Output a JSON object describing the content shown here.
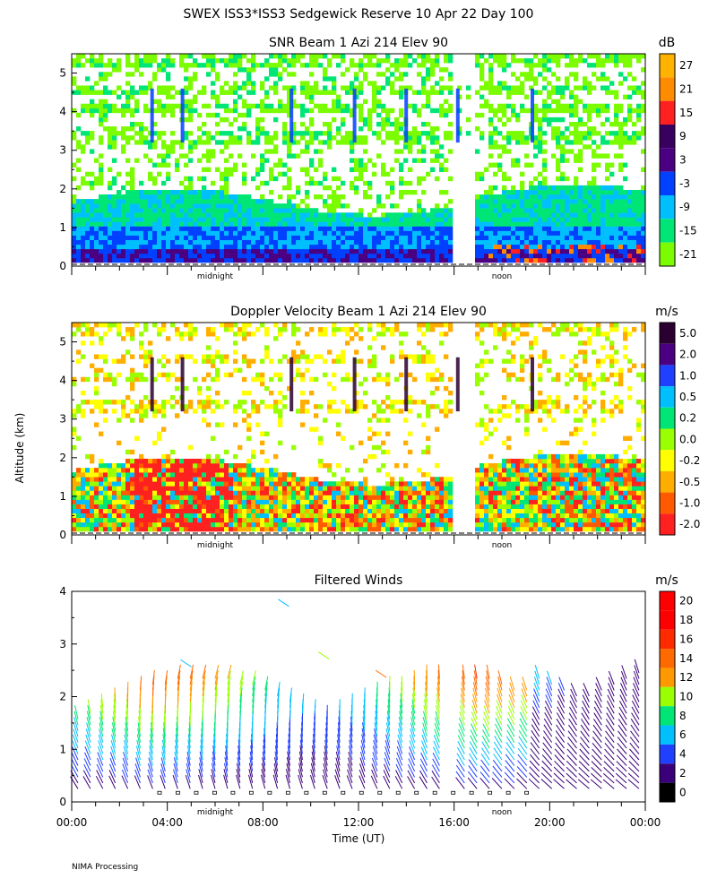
{
  "page_title": "SWEX ISS3*ISS3 Sedgewick Reserve  10 Apr 22 Day 100",
  "footer": "NIMA Processing",
  "colors": {
    "snr": [
      "#7cfc00",
      "#00e676",
      "#00bfff",
      "#0040ff",
      "#4b0082",
      "#3a0060",
      "#ff2020",
      "#ff8c00",
      "#ffb300"
    ],
    "velocity": [
      "#ff2020",
      "#ff5a00",
      "#ffae00",
      "#ffff00",
      "#9aff00",
      "#00e676",
      "#00bfff",
      "#2040ff",
      "#4b0082",
      "#2a0030"
    ],
    "winds": [
      "#000000",
      "#3a007a",
      "#2040ff",
      "#00bfff",
      "#00e676",
      "#9aff00",
      "#ff9900",
      "#ff6a00",
      "#ff2a00",
      "#ff0000",
      "#ff0000"
    ]
  },
  "chart_data": [
    {
      "type": "heatmap",
      "title": "SNR Beam 1 Azi 214 Elev 90",
      "ylabel": "",
      "ylim": [
        0,
        5.5
      ],
      "yticks": [
        "0",
        "1",
        "2",
        "3",
        "4",
        "5"
      ],
      "x_markers": [
        "midnight",
        "noon"
      ],
      "colorbar": {
        "unit": "dB",
        "labels": [
          "27",
          "21",
          "15",
          "9",
          "3",
          "-3",
          "-9",
          "-15",
          "-21"
        ]
      }
    },
    {
      "type": "heatmap",
      "title": "Doppler Velocity Beam 1 Azi 214 Elev 90",
      "ylabel": "Altitude (km)",
      "ylim": [
        0,
        5.5
      ],
      "yticks": [
        "0",
        "1",
        "2",
        "3",
        "4",
        "5"
      ],
      "x_markers": [
        "midnight",
        "noon"
      ],
      "colorbar": {
        "unit": "m/s",
        "labels": [
          "5.0",
          "2.0",
          "1.0",
          "0.5",
          "0.2",
          "0.0",
          "-0.2",
          "-0.5",
          "-1.0",
          "-2.0"
        ]
      }
    },
    {
      "type": "scatter",
      "title": "Filtered Winds",
      "ylabel": "",
      "xlabel": "Time (UT)",
      "ylim": [
        0,
        4
      ],
      "yticks": [
        "0",
        "1",
        "2",
        "3",
        "4"
      ],
      "xticks": [
        "00:00",
        "04:00",
        "08:00",
        "12:00",
        "16:00",
        "20:00",
        "00:00"
      ],
      "x_markers": [
        "midnight",
        "noon"
      ],
      "colorbar": {
        "unit": "m/s",
        "labels": [
          "20",
          "18",
          "16",
          "14",
          "12",
          "10",
          "8",
          "6",
          "4",
          "2",
          "0"
        ]
      }
    }
  ]
}
